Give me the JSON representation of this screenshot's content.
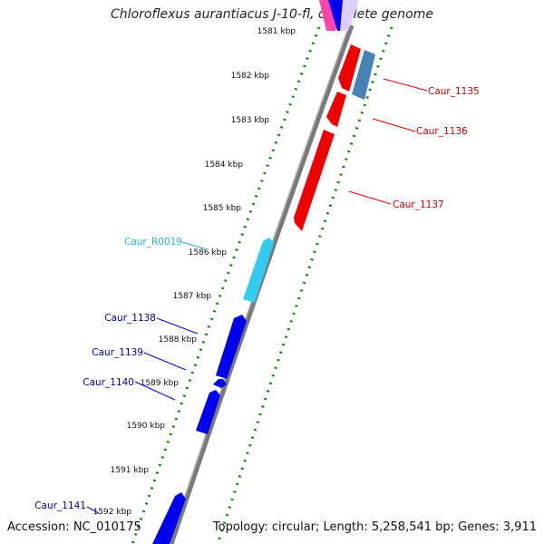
{
  "title": "Chloroflexus aurantiacus J-10-fl, complete genome",
  "footer": {
    "accession": "Accession: NC_010175",
    "summary": "Topology: circular; Length: 5,258,541 bp; Genes: 3,911"
  },
  "ruler_labels": [
    "1581 kbp",
    "1582 kbp",
    "1583 kbp",
    "1584 kbp",
    "1585 kbp",
    "1586 kbp",
    "1587 kbp",
    "1588 kbp",
    "1589 kbp",
    "1590 kbp",
    "1591 kbp",
    "1592 kbp"
  ],
  "gene_labels": [
    {
      "text": "Caur_1135",
      "color": "#cc0000"
    },
    {
      "text": "Caur_1136",
      "color": "#cc0000"
    },
    {
      "text": "Caur_1137",
      "color": "#cc0000"
    },
    {
      "text": "Caur_R0019",
      "color": "#22b5e0"
    },
    {
      "text": "Caur_1138",
      "color": "#0000aa"
    },
    {
      "text": "Caur_1139",
      "color": "#0000aa"
    },
    {
      "text": "Caur_1140",
      "color": "#0000aa"
    },
    {
      "text": "Caur_1141",
      "color": "#0000aa"
    }
  ],
  "colors": {
    "forward_cds": "#0000ee",
    "reverse_cds": "#ee0000",
    "rna": "#33ccf0",
    "reverse_other": "#4682b4",
    "forward_other": "#ff33aa",
    "ticks": "#008800",
    "backbone": "#888888"
  }
}
